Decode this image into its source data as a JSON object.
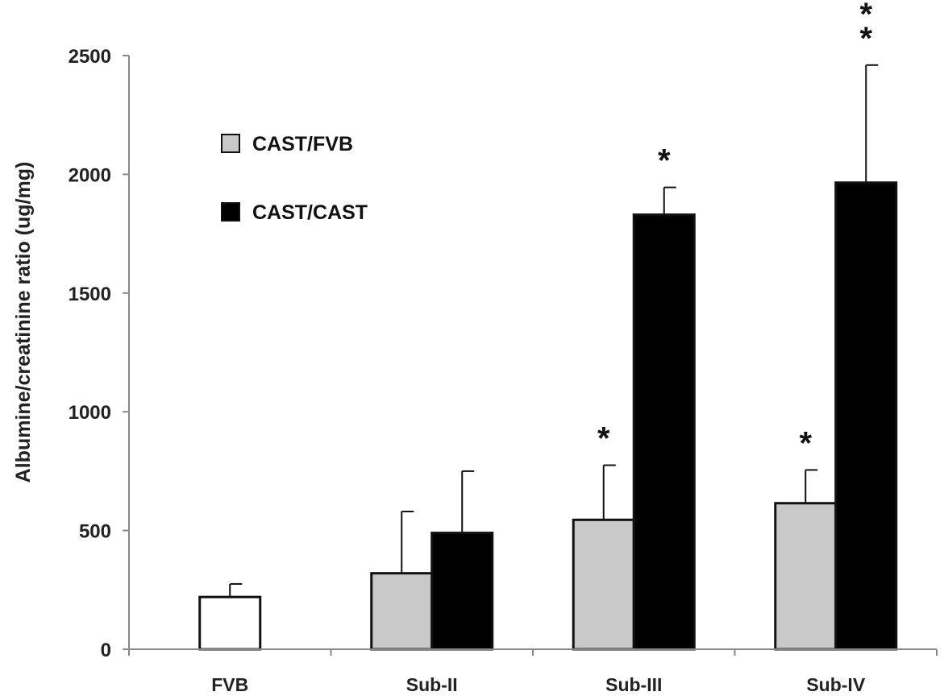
{
  "chart_data": {
    "type": "bar",
    "title": "",
    "xlabel": "",
    "ylabel": "Albumine/creatinine ratio (ug/mg)",
    "ylim": [
      0,
      2500
    ],
    "yticks": [
      0,
      500,
      1000,
      1500,
      2000,
      2500
    ],
    "grid": false,
    "legend_position": "top-left",
    "categories": [
      "FVB",
      "Sub-II",
      "Sub-III",
      "Sub-IV"
    ],
    "series": [
      {
        "name": "",
        "color": "#ffffff",
        "values": [
          220,
          null,
          null,
          null
        ],
        "errors": [
          55,
          null,
          null,
          null
        ],
        "significance": [
          "",
          "",
          "",
          ""
        ]
      },
      {
        "name": "CAST/FVB",
        "color": "#c8c8c8",
        "values": [
          null,
          320,
          545,
          615
        ],
        "errors": [
          null,
          260,
          230,
          140
        ],
        "significance": [
          "",
          "",
          "*",
          "*"
        ]
      },
      {
        "name": "CAST/CAST",
        "color": "#000000",
        "values": [
          null,
          490,
          1830,
          1965
        ],
        "errors": [
          null,
          260,
          115,
          495
        ],
        "significance": [
          "",
          "",
          "*",
          "**"
        ]
      }
    ]
  }
}
